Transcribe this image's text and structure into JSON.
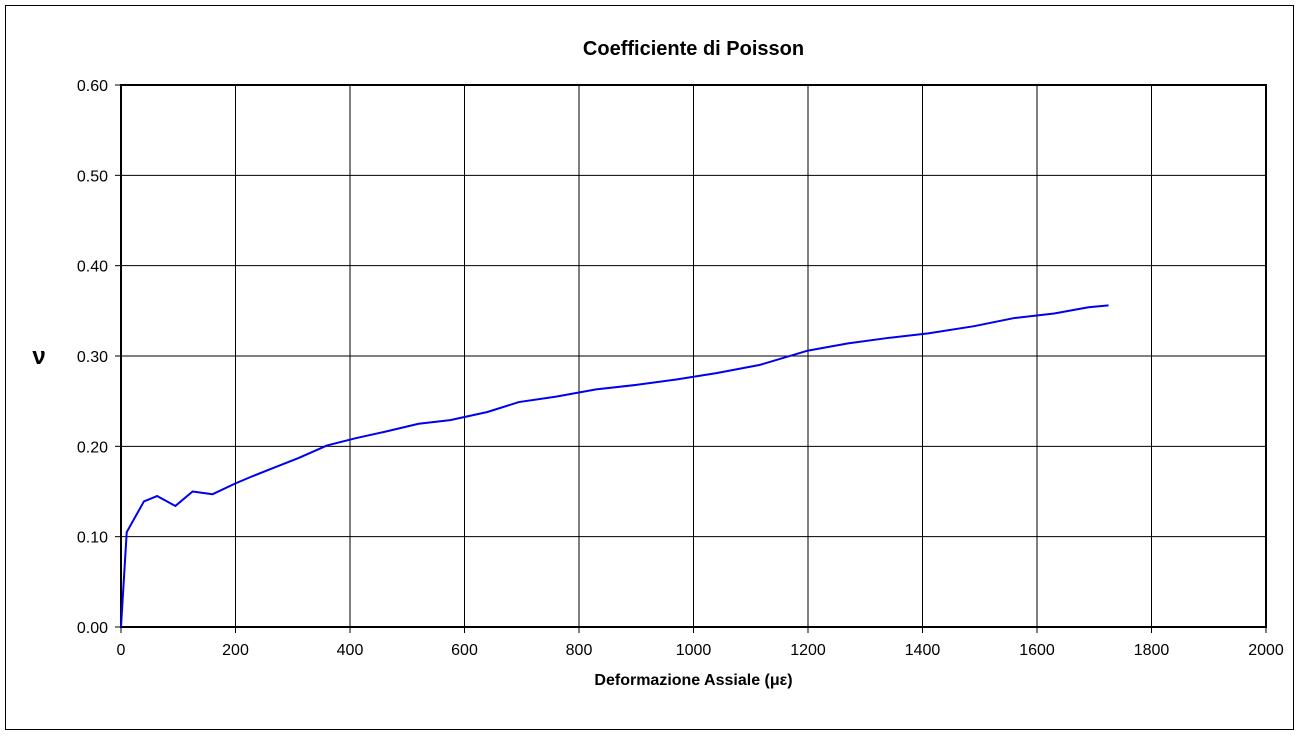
{
  "chart_data": {
    "type": "line",
    "title": "Coefficiente di Poisson",
    "xlabel": "Deformazione Assiale (με)",
    "ylabel": "ν",
    "xlim": [
      0,
      2000
    ],
    "ylim": [
      0,
      0.6
    ],
    "x_ticks": [
      "0",
      "200",
      "400",
      "600",
      "800",
      "1000",
      "1200",
      "1400",
      "1600",
      "1800",
      "2000"
    ],
    "y_ticks": [
      "0.00",
      "0.10",
      "0.20",
      "0.30",
      "0.40",
      "0.50",
      "0.60"
    ],
    "grid": true,
    "series": [
      {
        "color": "#0000ee",
        "x": [
          0,
          10,
          40,
          63,
          95,
          125,
          160,
          200,
          230,
          270,
          310,
          360,
          410,
          460,
          520,
          575,
          640,
          695,
          760,
          830,
          900,
          970,
          1040,
          1115,
          1200,
          1270,
          1340,
          1410,
          1490,
          1560,
          1630,
          1690,
          1725
        ],
        "y": [
          0.0,
          0.105,
          0.139,
          0.145,
          0.134,
          0.15,
          0.147,
          0.159,
          0.167,
          0.177,
          0.187,
          0.201,
          0.209,
          0.216,
          0.225,
          0.229,
          0.238,
          0.249,
          0.255,
          0.263,
          0.268,
          0.274,
          0.281,
          0.29,
          0.306,
          0.314,
          0.32,
          0.325,
          0.333,
          0.342,
          0.347,
          0.354,
          0.356
        ]
      }
    ]
  }
}
